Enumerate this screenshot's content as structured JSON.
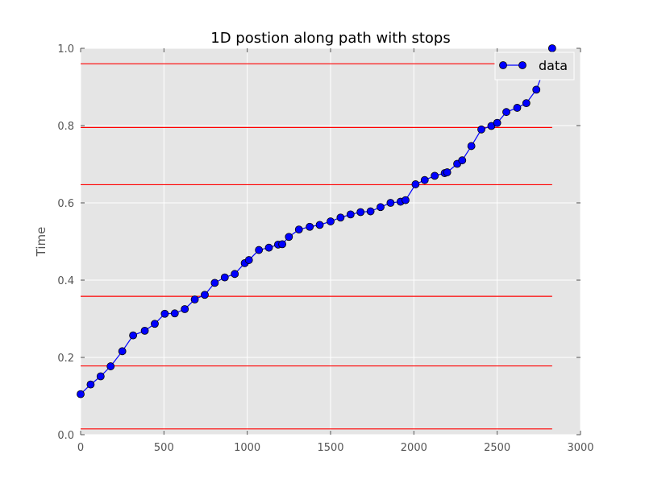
{
  "chart_data": {
    "type": "line",
    "title": "1D postion along path with stops",
    "xlabel": "",
    "ylabel": "Time",
    "xlim": [
      0,
      3000
    ],
    "ylim": [
      0.0,
      1.0
    ],
    "xticks": [
      0,
      500,
      1000,
      1500,
      2000,
      2500,
      3000
    ],
    "xtick_labels": [
      "0",
      "500",
      "1000",
      "1500",
      "2000",
      "2500",
      "3000"
    ],
    "yticks": [
      0.0,
      0.2,
      0.4,
      0.6,
      0.8,
      1.0
    ],
    "ytick_labels": [
      "0.0",
      "0.2",
      "0.4",
      "0.6",
      "0.8",
      "1.0"
    ],
    "grid": true,
    "legend_position": "top-right",
    "series": [
      {
        "name": "data",
        "color": "#0000ff",
        "marker": "circle",
        "x": [
          0,
          60,
          120,
          180,
          250,
          315,
          385,
          445,
          505,
          565,
          625,
          685,
          745,
          805,
          865,
          925,
          985,
          1010,
          1070,
          1130,
          1185,
          1210,
          1250,
          1310,
          1375,
          1435,
          1500,
          1560,
          1620,
          1680,
          1740,
          1800,
          1860,
          1920,
          1950,
          2010,
          2065,
          2125,
          2185,
          2200,
          2260,
          2290,
          2345,
          2405,
          2465,
          2500,
          2555,
          2620,
          2675,
          2735,
          2830
        ],
        "y": [
          0.105,
          0.13,
          0.151,
          0.177,
          0.216,
          0.257,
          0.269,
          0.287,
          0.313,
          0.314,
          0.325,
          0.35,
          0.362,
          0.393,
          0.407,
          0.416,
          0.444,
          0.452,
          0.478,
          0.484,
          0.492,
          0.493,
          0.512,
          0.531,
          0.538,
          0.543,
          0.552,
          0.562,
          0.57,
          0.576,
          0.578,
          0.589,
          0.6,
          0.603,
          0.607,
          0.648,
          0.659,
          0.67,
          0.677,
          0.679,
          0.701,
          0.71,
          0.747,
          0.79,
          0.799,
          0.807,
          0.835,
          0.846,
          0.858,
          0.893,
          1.0
        ]
      }
    ],
    "stop_lines": {
      "color": "#ff0000",
      "y": [
        0.015,
        0.178,
        0.358,
        0.647,
        0.795,
        0.96
      ]
    },
    "colors": {
      "plot_background": "#e5e5e5",
      "grid": "#ffffff",
      "axis_text": "#555555"
    }
  }
}
